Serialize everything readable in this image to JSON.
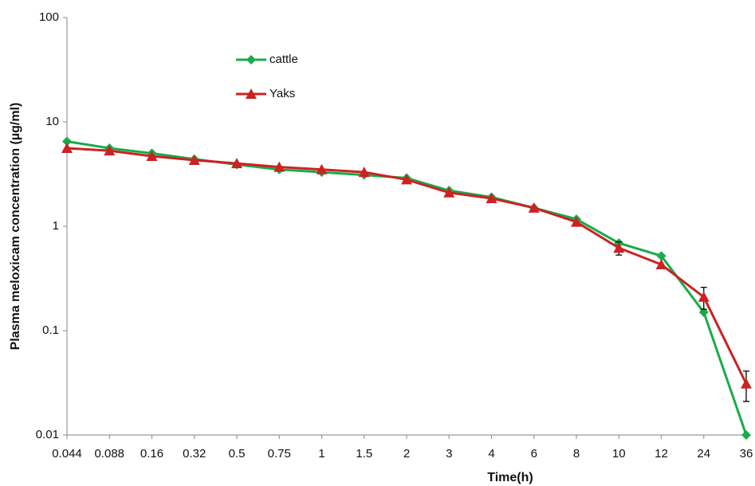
{
  "chart_data": {
    "type": "line",
    "x_label": "Time(h)",
    "y_label": "Plasma meloxicam concentration (µg/ml)",
    "categories": [
      "0.044",
      "0.088",
      "0.16",
      "0.32",
      "0.5",
      "0.75",
      "1",
      "1.5",
      "2",
      "3",
      "4",
      "6",
      "8",
      "10",
      "12",
      "24",
      "36"
    ],
    "y_scale": "log",
    "ylim": [
      0.01,
      100
    ],
    "yticks": [
      0.01,
      0.1,
      1,
      10,
      100
    ],
    "grid": false,
    "legend_position": "upper-left",
    "series": [
      {
        "name": "cattle",
        "color": "#1aab4a",
        "marker": "diamond",
        "values": [
          6.5,
          5.6,
          5.0,
          4.4,
          3.9,
          3.5,
          3.3,
          3.1,
          2.9,
          2.2,
          1.9,
          1.5,
          1.17,
          0.69,
          0.52,
          0.15,
          0.01
        ]
      },
      {
        "name": "Yaks",
        "color": "#cc2222",
        "marker": "triangle",
        "values": [
          5.6,
          5.3,
          4.7,
          4.3,
          4.0,
          3.7,
          3.5,
          3.3,
          2.8,
          2.1,
          1.85,
          1.5,
          1.1,
          0.62,
          0.43,
          0.21,
          0.031
        ],
        "errors": [
          null,
          null,
          null,
          null,
          null,
          null,
          null,
          null,
          null,
          null,
          null,
          null,
          null,
          0.09,
          null,
          0.05,
          0.01
        ]
      }
    ]
  }
}
